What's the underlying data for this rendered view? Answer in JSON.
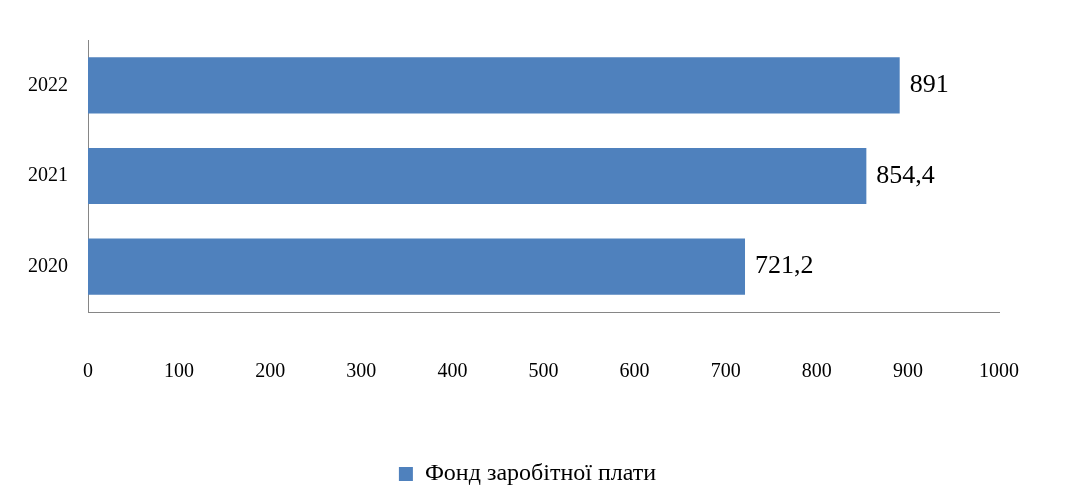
{
  "chart_data": {
    "type": "bar",
    "orientation": "horizontal",
    "categories": [
      "2022",
      "2021",
      "2020"
    ],
    "series": [
      {
        "name": "Фонд заробітної плати",
        "color": "#4f81bd",
        "values": [
          891,
          854.4,
          721.2
        ],
        "value_labels": [
          "891",
          "854,4",
          "721,2"
        ]
      }
    ],
    "xlim": [
      0,
      1000
    ],
    "xticks": [
      0,
      100,
      200,
      300,
      400,
      500,
      600,
      700,
      800,
      900,
      1000
    ],
    "legend": "bottom"
  }
}
